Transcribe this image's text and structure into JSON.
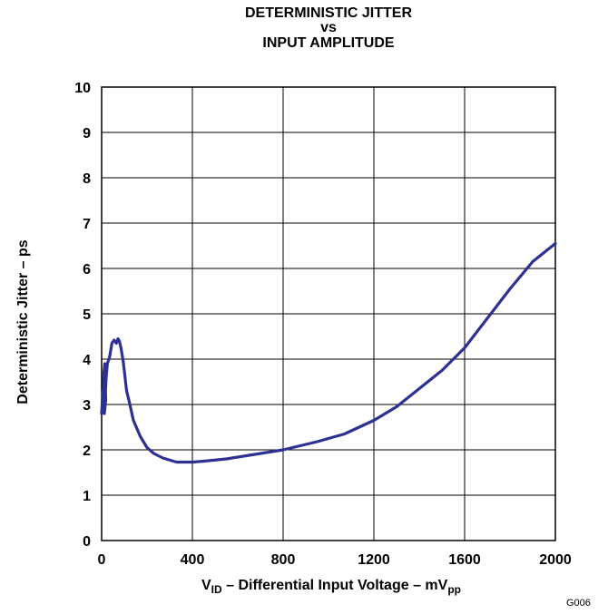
{
  "title_lines": [
    "DETERMINISTIC JITTER",
    "vs",
    "INPUT AMPLITUDE"
  ],
  "ylabel": "Deterministic Jitter – ps",
  "xlabel": {
    "v": "V",
    "v_sub": "ID",
    "middle": " – Differential Input Voltage – mV",
    "unit_sub": "pp"
  },
  "figure_id": "G006",
  "chart_data": {
    "type": "line",
    "xlim": [
      0,
      2000
    ],
    "ylim": [
      0,
      10
    ],
    "x_ticks": [
      0,
      400,
      800,
      1200,
      1600,
      2000
    ],
    "y_ticks": [
      0,
      1,
      2,
      3,
      4,
      5,
      6,
      7,
      8,
      9,
      10
    ],
    "grid": true,
    "line_color": "#2e3192",
    "series": [
      {
        "x": [
          0,
          5,
          10,
          8,
          14,
          18,
          12,
          20,
          25,
          35,
          45,
          55,
          65,
          72,
          78,
          85,
          95,
          110,
          120,
          140,
          170,
          200,
          230,
          270,
          330,
          400,
          450,
          550,
          650,
          800,
          950,
          1070,
          1200,
          1300,
          1400,
          1500,
          1600,
          1700,
          1800,
          1900,
          1950,
          2000
        ],
        "y": [
          2.8,
          3.3,
          2.9,
          3.6,
          3.9,
          3.1,
          2.8,
          3.6,
          3.9,
          4.05,
          4.35,
          4.42,
          4.35,
          4.45,
          4.4,
          4.25,
          3.95,
          3.3,
          3.1,
          2.65,
          2.3,
          2.05,
          1.92,
          1.82,
          1.73,
          1.73,
          1.75,
          1.8,
          1.88,
          2.0,
          2.18,
          2.35,
          2.65,
          2.95,
          3.35,
          3.75,
          4.25,
          4.9,
          5.55,
          6.15,
          6.35,
          6.55
        ]
      }
    ]
  }
}
